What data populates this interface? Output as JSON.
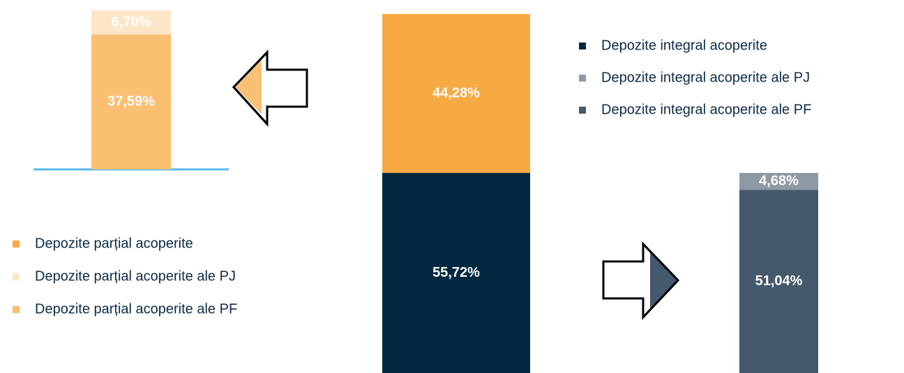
{
  "chart_data": [
    {
      "type": "bar",
      "stacked": true,
      "series": [
        {
          "name": "Depozite integral acoperite",
          "color": "#012840",
          "values": [
            55.72
          ],
          "value_labels": [
            "55,72%"
          ]
        },
        {
          "name": "Depozite parțial acoperite",
          "color": "#f7aa43",
          "values": [
            44.28
          ],
          "value_labels": [
            "44,28%"
          ]
        }
      ]
    },
    {
      "type": "bar",
      "stacked": true,
      "series": [
        {
          "name": "Depozite parțial acoperite ale PF",
          "color": "#fbbf72",
          "values": [
            37.59
          ],
          "value_labels": [
            "37,59%"
          ]
        },
        {
          "name": "Depozite parțial acoperite ale PJ",
          "color": "#fde6c8",
          "values": [
            6.7
          ],
          "value_labels": [
            "6,70%"
          ]
        }
      ]
    },
    {
      "type": "bar",
      "stacked": true,
      "series": [
        {
          "name": "Depozite integral acoperite ale PF",
          "color": "#44596c",
          "values": [
            51.04
          ],
          "value_labels": [
            "51,04%"
          ]
        },
        {
          "name": "Depozite integral acoperite ale PJ",
          "color": "#8d9aa5",
          "values": [
            4.68
          ],
          "value_labels": [
            "4,68%"
          ]
        }
      ]
    }
  ]
}
